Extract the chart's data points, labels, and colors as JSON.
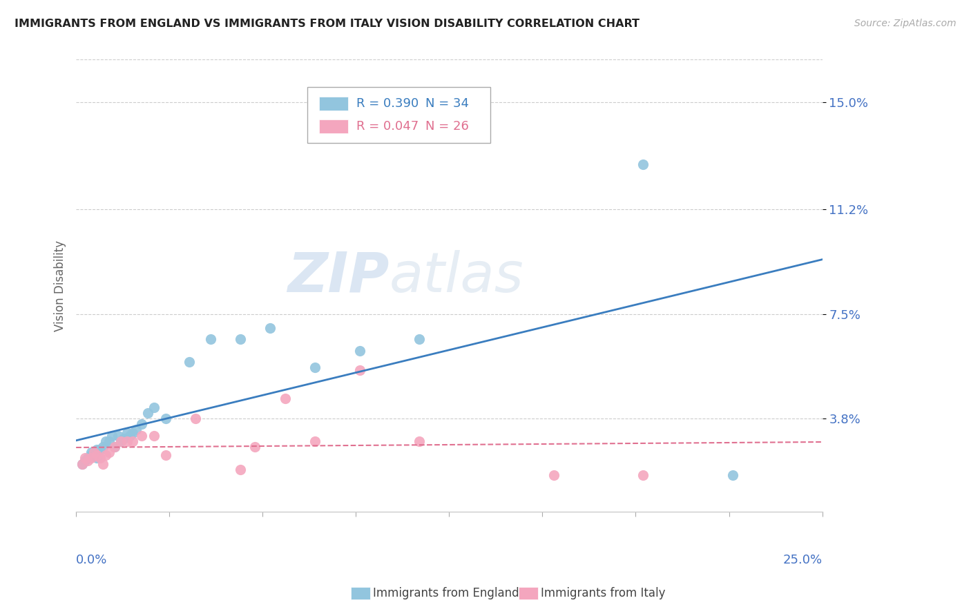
{
  "title": "IMMIGRANTS FROM ENGLAND VS IMMIGRANTS FROM ITALY VISION DISABILITY CORRELATION CHART",
  "source": "Source: ZipAtlas.com",
  "ylabel": "Vision Disability",
  "ytick_vals": [
    0.038,
    0.075,
    0.112,
    0.15
  ],
  "ytick_labels": [
    "3.8%",
    "7.5%",
    "11.2%",
    "15.0%"
  ],
  "xlim": [
    0.0,
    0.25
  ],
  "ylim": [
    0.005,
    0.165
  ],
  "legend_r1": "R = 0.390",
  "legend_n1": "N = 34",
  "legend_r2": "R = 0.047",
  "legend_n2": "N = 26",
  "legend_label1": "Immigrants from England",
  "legend_label2": "Immigrants from Italy",
  "color_england": "#92c5de",
  "color_italy": "#f4a6be",
  "color_england_line": "#3a7dbf",
  "color_italy_line": "#e07090",
  "color_grid": "#cccccc",
  "color_axis_labels": "#4472c4",
  "watermark_zip": "ZIP",
  "watermark_atlas": "atlas",
  "england_x": [
    0.002,
    0.003,
    0.004,
    0.005,
    0.005,
    0.006,
    0.007,
    0.007,
    0.008,
    0.009,
    0.01,
    0.011,
    0.012,
    0.013,
    0.014,
    0.015,
    0.016,
    0.017,
    0.018,
    0.019,
    0.02,
    0.022,
    0.024,
    0.026,
    0.03,
    0.038,
    0.045,
    0.055,
    0.065,
    0.08,
    0.095,
    0.115,
    0.19,
    0.22
  ],
  "england_y": [
    0.022,
    0.023,
    0.024,
    0.025,
    0.026,
    0.025,
    0.024,
    0.027,
    0.027,
    0.028,
    0.03,
    0.03,
    0.032,
    0.028,
    0.032,
    0.03,
    0.031,
    0.033,
    0.032,
    0.033,
    0.034,
    0.036,
    0.04,
    0.042,
    0.038,
    0.058,
    0.066,
    0.066,
    0.07,
    0.056,
    0.062,
    0.066,
    0.128,
    0.018
  ],
  "italy_x": [
    0.002,
    0.003,
    0.004,
    0.005,
    0.006,
    0.007,
    0.008,
    0.009,
    0.01,
    0.011,
    0.013,
    0.015,
    0.017,
    0.019,
    0.022,
    0.026,
    0.03,
    0.04,
    0.055,
    0.06,
    0.07,
    0.08,
    0.095,
    0.115,
    0.16,
    0.19
  ],
  "italy_y": [
    0.022,
    0.024,
    0.023,
    0.024,
    0.026,
    0.025,
    0.024,
    0.022,
    0.025,
    0.026,
    0.028,
    0.03,
    0.03,
    0.03,
    0.032,
    0.032,
    0.025,
    0.038,
    0.02,
    0.028,
    0.045,
    0.03,
    0.055,
    0.03,
    0.018,
    0.018
  ]
}
